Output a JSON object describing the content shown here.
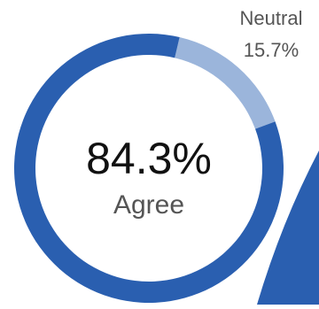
{
  "chart_data": {
    "type": "pie",
    "donut": true,
    "slices": [
      {
        "label": "Agree",
        "value": 84.3,
        "display": "84.3%",
        "color": "#2a5fb0"
      },
      {
        "label": "Neutral",
        "value": 15.7,
        "display": "15.7%",
        "color": "#9bb5db"
      }
    ],
    "center": {
      "value": "84.3%",
      "label": "Agree"
    },
    "annotation": {
      "label": "Neutral",
      "value": "15.7%"
    },
    "accent_shape_color": "#2a5fb0"
  }
}
